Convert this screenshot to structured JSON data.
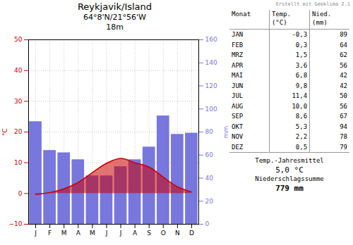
{
  "chart_data": {
    "type": "combo",
    "title": "Reykjavik/Island",
    "subtitle": [
      "64°8'N/21°56'W",
      "18m"
    ],
    "annotations": [
      "Erstellt mit Geoklima 2.1"
    ],
    "categories": [
      "J",
      "F",
      "M",
      "A",
      "M",
      "J",
      "J",
      "A",
      "S",
      "O",
      "N",
      "D"
    ],
    "series": [
      {
        "type": "bar",
        "axis": "y2",
        "color": "#7777dd",
        "values": [
          89,
          64,
          62,
          56,
          42,
          42,
          50,
          56,
          67,
          94,
          78,
          79
        ]
      },
      {
        "type": "area",
        "color": "#cc0000",
        "values": [
          -0.3,
          0.3,
          1.5,
          3.6,
          6.8,
          9.8,
          11.4,
          10.0,
          8.6,
          5.3,
          2.2,
          0.5
        ]
      }
    ],
    "ylabel": "°C",
    "y2label": "mm",
    "ylim": [
      -10,
      50
    ],
    "yticks": [
      -10,
      0,
      10,
      20,
      30,
      40,
      50
    ],
    "y2lim": [
      0,
      160
    ],
    "y2ticks": [
      0,
      20,
      40,
      60,
      80,
      100,
      120,
      140,
      160
    ],
    "grid": true,
    "table": {
      "columns": [
        [
          "Monat"
        ],
        [
          "Temp.",
          "(°C)"
        ],
        [
          "Nied.",
          "(mm)"
        ]
      ],
      "rows": [
        "JAN",
        "FEB",
        "MRZ",
        "APR",
        "MAI",
        "JUN",
        "JUL",
        "AUG",
        "SEP",
        "OKT",
        "NOV",
        "DEZ"
      ],
      "temp_labels": [
        "-0,3",
        "0,3",
        "1,5",
        "3,6",
        "6,8",
        "9,8",
        "11,4",
        "10,0",
        "8,6",
        "5,3",
        "2,2",
        "0,5"
      ],
      "footer": [
        "Temp.-Jahresmittel",
        "5,0 °C",
        "Niederschlagssumme",
        "779 mm"
      ]
    }
  }
}
